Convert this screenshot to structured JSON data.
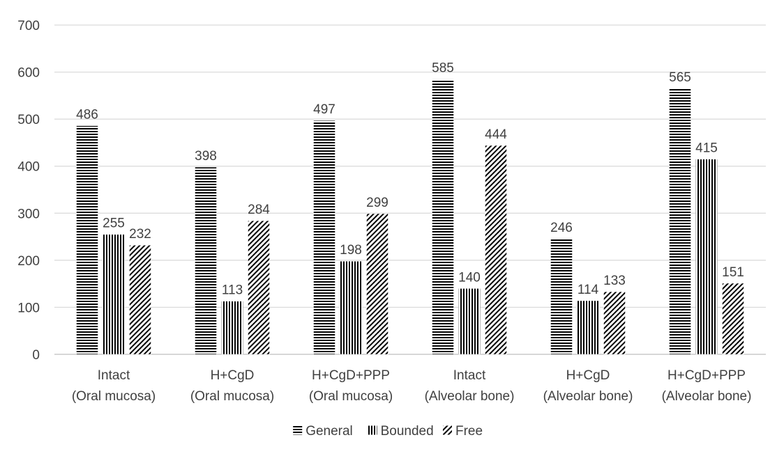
{
  "chart_data": {
    "type": "bar",
    "title": "",
    "xlabel": "",
    "ylabel": "",
    "ylim": [
      0,
      700
    ],
    "yticks": [
      0,
      100,
      200,
      300,
      400,
      500,
      600,
      700
    ],
    "grid": true,
    "legend_position": "bottom",
    "categories": [
      [
        "Intact",
        "(Oral mucosa)"
      ],
      [
        "H+CgD",
        "(Oral mucosa)"
      ],
      [
        "H+CgD+PPP",
        "(Oral mucosa)"
      ],
      [
        "Intact",
        "(Alveolar bone)"
      ],
      [
        "H+CgD",
        "(Alveolar bone)"
      ],
      [
        "H+CgD+PPP",
        "(Alveolar bone)"
      ]
    ],
    "series": [
      {
        "name": "General",
        "pattern": "horizontal",
        "values": [
          486,
          398,
          497,
          585,
          246,
          565
        ]
      },
      {
        "name": "Bounded",
        "pattern": "vertical",
        "values": [
          255,
          113,
          198,
          140,
          114,
          415
        ]
      },
      {
        "name": "Free",
        "pattern": "diagonal",
        "values": [
          232,
          284,
          299,
          444,
          133,
          151
        ]
      }
    ],
    "colors": {
      "bar": "#000000",
      "grid": "#d9d9d9",
      "text": "#404040"
    }
  }
}
